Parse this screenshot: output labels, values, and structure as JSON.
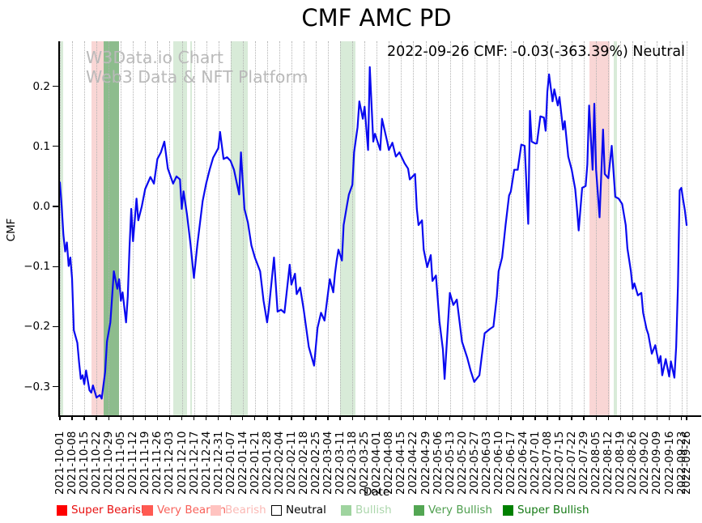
{
  "title": "CMF AMC PD",
  "annotation": "2022-09-26 CMF: -0.03(-363.39%) Neutral",
  "watermark": {
    "line1": "W3Data.io Chart",
    "line2": "Web3 Data & NFT Platform"
  },
  "axes": {
    "x_label": "Date",
    "y_label": "CMF",
    "y_ticks": [
      "0.2",
      "0.1",
      "0.0",
      "−0.1",
      "−0.2",
      "−0.3"
    ],
    "x_ticks": [
      "2021-10-01",
      "2021-10-08",
      "2021-10-15",
      "2021-10-22",
      "2021-10-29",
      "2021-11-05",
      "2021-11-12",
      "2021-11-19",
      "2021-11-26",
      "2021-12-03",
      "2021-12-10",
      "2021-12-17",
      "2021-12-24",
      "2021-12-31",
      "2022-01-07",
      "2022-01-14",
      "2022-01-21",
      "2022-01-28",
      "2022-02-04",
      "2022-02-11",
      "2022-02-18",
      "2022-02-25",
      "2022-03-04",
      "2022-03-11",
      "2022-03-18",
      "2022-03-25",
      "2022-04-01",
      "2022-04-08",
      "2022-04-15",
      "2022-04-22",
      "2022-04-29",
      "2022-05-06",
      "2022-05-13",
      "2022-05-20",
      "2022-05-27",
      "2022-06-03",
      "2022-06-10",
      "2022-06-17",
      "2022-06-24",
      "2022-07-01",
      "2022-07-08",
      "2022-07-15",
      "2022-07-22",
      "2022-07-29",
      "2022-08-05",
      "2022-08-12",
      "2022-08-19",
      "2022-08-26",
      "2022-09-02",
      "2022-09-09",
      "2022-09-16",
      "2022-09-23",
      "2022-09-26"
    ]
  },
  "colors": {
    "line": "#0a0af0",
    "bearish_band": "#f9d6d5",
    "bullish_band": "#d8ebd8",
    "very_bullish_band": "#8dbc8d",
    "gridline": "#b3b3b3",
    "watermark": "#bababa"
  },
  "legend": [
    {
      "label": "Super Bearish",
      "color": "#fe0000",
      "text_color": "#e81010",
      "edge": "#fe0000"
    },
    {
      "label": "Very Bearish",
      "color": "#ff5a52",
      "text_color": "#f8615a",
      "edge": "#ff5a52"
    },
    {
      "label": "Bearish",
      "color": "#ffc3c0",
      "text_color": "#fbb9b5",
      "edge": "#ffc3c0"
    },
    {
      "label": "Neutral",
      "color": "#ffffff",
      "text_color": "#000000",
      "edge": "#000000"
    },
    {
      "label": "Bullish",
      "color": "#9fd49f",
      "text_color": "#abd6ab",
      "edge": "#9fd49f"
    },
    {
      "label": "Very Bullish",
      "color": "#53a653",
      "text_color": "#4f9f4f",
      "edge": "#53a653"
    },
    {
      "label": "Super Bullish",
      "color": "#008000",
      "text_color": "#157a15",
      "edge": "#008000"
    }
  ],
  "chart_data": {
    "type": "line",
    "title": "CMF AMC PD",
    "xlabel": "Date",
    "ylabel": "CMF",
    "x_range": [
      "2021-10-01",
      "2022-09-26"
    ],
    "ylim": [
      -0.348,
      0.275
    ],
    "y_tick_values": [
      0.2,
      0.1,
      0.0,
      -0.1,
      -0.2,
      -0.3
    ],
    "grid": "vertical dotted weekly",
    "legend_position": "bottom",
    "latest": {
      "date": "2022-09-26",
      "value": -0.03,
      "change_pct": -363.39,
      "signal": "Neutral"
    },
    "bands": [
      {
        "start": "2021-10-01",
        "end": "2021-10-03",
        "category": "bullish"
      },
      {
        "start": "2021-10-19",
        "end": "2021-10-26",
        "category": "bearish"
      },
      {
        "start": "2021-10-26",
        "end": "2021-11-04",
        "category": "very_bullish"
      },
      {
        "start": "2021-12-05",
        "end": "2021-12-13",
        "category": "bullish"
      },
      {
        "start": "2021-12-15",
        "end": "2021-12-16",
        "category": "bullish"
      },
      {
        "start": "2022-01-07",
        "end": "2022-01-17",
        "category": "bullish"
      },
      {
        "start": "2022-03-11",
        "end": "2022-03-20",
        "category": "bullish"
      },
      {
        "start": "2022-08-01",
        "end": "2022-08-13",
        "category": "bearish"
      },
      {
        "start": "2022-08-15",
        "end": "2022-08-17",
        "category": "bullish"
      }
    ],
    "series": [
      {
        "name": "CMF",
        "color": "#0a0af0",
        "points": [
          [
            "2021-10-01",
            0.04
          ],
          [
            "2021-10-02",
            0.0
          ],
          [
            "2021-10-03",
            -0.047
          ],
          [
            "2021-10-04",
            -0.075
          ],
          [
            "2021-10-05",
            -0.06
          ],
          [
            "2021-10-06",
            -0.099
          ],
          [
            "2021-10-07",
            -0.085
          ],
          [
            "2021-10-08",
            -0.12
          ],
          [
            "2021-10-09",
            -0.206
          ],
          [
            "2021-10-11",
            -0.227
          ],
          [
            "2021-10-12",
            -0.26
          ],
          [
            "2021-10-13",
            -0.287
          ],
          [
            "2021-10-14",
            -0.281
          ],
          [
            "2021-10-15",
            -0.296
          ],
          [
            "2021-10-16",
            -0.273
          ],
          [
            "2021-10-18",
            -0.306
          ],
          [
            "2021-10-19",
            -0.31
          ],
          [
            "2021-10-20",
            -0.298
          ],
          [
            "2021-10-22",
            -0.318
          ],
          [
            "2021-10-24",
            -0.314
          ],
          [
            "2021-10-25",
            -0.32
          ],
          [
            "2021-10-27",
            -0.275
          ],
          [
            "2021-10-28",
            -0.225
          ],
          [
            "2021-10-30",
            -0.193
          ],
          [
            "2021-11-01",
            -0.108
          ],
          [
            "2021-11-03",
            -0.137
          ],
          [
            "2021-11-04",
            -0.121
          ],
          [
            "2021-11-05",
            -0.157
          ],
          [
            "2021-11-06",
            -0.143
          ],
          [
            "2021-11-08",
            -0.193
          ],
          [
            "2021-11-09",
            -0.15
          ],
          [
            "2021-11-10",
            -0.067
          ],
          [
            "2021-11-11",
            -0.004
          ],
          [
            "2021-11-12",
            -0.058
          ],
          [
            "2021-11-14",
            0.013
          ],
          [
            "2021-11-15",
            -0.023
          ],
          [
            "2021-11-17",
            0.0
          ],
          [
            "2021-11-19",
            0.029
          ],
          [
            "2021-11-22",
            0.049
          ],
          [
            "2021-11-24",
            0.038
          ],
          [
            "2021-11-26",
            0.079
          ],
          [
            "2021-11-28",
            0.09
          ],
          [
            "2021-11-30",
            0.108
          ],
          [
            "2021-12-02",
            0.063
          ],
          [
            "2021-12-05",
            0.038
          ],
          [
            "2021-12-07",
            0.05
          ],
          [
            "2021-12-09",
            0.045
          ],
          [
            "2021-12-10",
            -0.004
          ],
          [
            "2021-12-11",
            0.025
          ],
          [
            "2021-12-13",
            -0.013
          ],
          [
            "2021-12-15",
            -0.063
          ],
          [
            "2021-12-17",
            -0.119
          ],
          [
            "2021-12-19",
            -0.063
          ],
          [
            "2021-12-22",
            0.009
          ],
          [
            "2021-12-24",
            0.038
          ],
          [
            "2021-12-26",
            0.061
          ],
          [
            "2021-12-28",
            0.081
          ],
          [
            "2021-12-31",
            0.097
          ],
          [
            "2022-01-01",
            0.124
          ],
          [
            "2022-01-03",
            0.079
          ],
          [
            "2022-01-05",
            0.082
          ],
          [
            "2022-01-07",
            0.076
          ],
          [
            "2022-01-09",
            0.061
          ],
          [
            "2022-01-12",
            0.02
          ],
          [
            "2022-01-13",
            0.09
          ],
          [
            "2022-01-15",
            -0.004
          ],
          [
            "2022-01-17",
            -0.027
          ],
          [
            "2022-01-19",
            -0.065
          ],
          [
            "2022-01-21",
            -0.085
          ],
          [
            "2022-01-24",
            -0.108
          ],
          [
            "2022-01-26",
            -0.157
          ],
          [
            "2022-01-28",
            -0.193
          ],
          [
            "2022-01-29",
            -0.171
          ],
          [
            "2022-02-01",
            -0.085
          ],
          [
            "2022-02-03",
            -0.175
          ],
          [
            "2022-02-05",
            -0.172
          ],
          [
            "2022-02-07",
            -0.177
          ],
          [
            "2022-02-10",
            -0.097
          ],
          [
            "2022-02-11",
            -0.13
          ],
          [
            "2022-02-13",
            -0.112
          ],
          [
            "2022-02-14",
            -0.146
          ],
          [
            "2022-02-16",
            -0.135
          ],
          [
            "2022-02-18",
            -0.171
          ],
          [
            "2022-02-21",
            -0.234
          ],
          [
            "2022-02-24",
            -0.265
          ],
          [
            "2022-02-26",
            -0.202
          ],
          [
            "2022-02-28",
            -0.177
          ],
          [
            "2022-03-02",
            -0.19
          ],
          [
            "2022-03-05",
            -0.121
          ],
          [
            "2022-03-07",
            -0.143
          ],
          [
            "2022-03-08",
            -0.112
          ],
          [
            "2022-03-09",
            -0.09
          ],
          [
            "2022-03-10",
            -0.072
          ],
          [
            "2022-03-12",
            -0.09
          ],
          [
            "2022-03-13",
            -0.031
          ],
          [
            "2022-03-15",
            0.004
          ],
          [
            "2022-03-16",
            0.02
          ],
          [
            "2022-03-18",
            0.036
          ],
          [
            "2022-03-19",
            0.09
          ],
          [
            "2022-03-21",
            0.132
          ],
          [
            "2022-03-22",
            0.175
          ],
          [
            "2022-03-24",
            0.146
          ],
          [
            "2022-03-25",
            0.166
          ],
          [
            "2022-03-27",
            0.094
          ],
          [
            "2022-03-28",
            0.232
          ],
          [
            "2022-03-30",
            0.108
          ],
          [
            "2022-03-31",
            0.121
          ],
          [
            "2022-04-03",
            0.094
          ],
          [
            "2022-04-04",
            0.146
          ],
          [
            "2022-04-07",
            0.108
          ],
          [
            "2022-04-08",
            0.094
          ],
          [
            "2022-04-10",
            0.106
          ],
          [
            "2022-04-12",
            0.083
          ],
          [
            "2022-04-14",
            0.09
          ],
          [
            "2022-04-17",
            0.072
          ],
          [
            "2022-04-19",
            0.063
          ],
          [
            "2022-04-20",
            0.045
          ],
          [
            "2022-04-23",
            0.054
          ],
          [
            "2022-04-24",
            -0.004
          ],
          [
            "2022-04-25",
            -0.031
          ],
          [
            "2022-04-27",
            -0.023
          ],
          [
            "2022-04-28",
            -0.072
          ],
          [
            "2022-04-30",
            -0.101
          ],
          [
            "2022-05-02",
            -0.081
          ],
          [
            "2022-05-03",
            -0.124
          ],
          [
            "2022-05-05",
            -0.115
          ],
          [
            "2022-05-07",
            -0.191
          ],
          [
            "2022-05-09",
            -0.238
          ],
          [
            "2022-05-10",
            -0.287
          ],
          [
            "2022-05-13",
            -0.144
          ],
          [
            "2022-05-15",
            -0.164
          ],
          [
            "2022-05-17",
            -0.155
          ],
          [
            "2022-05-20",
            -0.225
          ],
          [
            "2022-05-23",
            -0.252
          ],
          [
            "2022-05-25",
            -0.274
          ],
          [
            "2022-05-27",
            -0.292
          ],
          [
            "2022-05-30",
            -0.281
          ],
          [
            "2022-06-01",
            -0.234
          ],
          [
            "2022-06-02",
            -0.211
          ],
          [
            "2022-06-05",
            -0.204
          ],
          [
            "2022-06-07",
            -0.2
          ],
          [
            "2022-06-09",
            -0.15
          ],
          [
            "2022-06-10",
            -0.108
          ],
          [
            "2022-06-12",
            -0.085
          ],
          [
            "2022-06-13",
            -0.058
          ],
          [
            "2022-06-14",
            -0.031
          ],
          [
            "2022-06-16",
            0.018
          ],
          [
            "2022-06-17",
            0.025
          ],
          [
            "2022-06-19",
            0.061
          ],
          [
            "2022-06-21",
            0.061
          ],
          [
            "2022-06-23",
            0.103
          ],
          [
            "2022-06-25",
            0.101
          ],
          [
            "2022-06-27",
            -0.029
          ],
          [
            "2022-06-28",
            0.159
          ],
          [
            "2022-06-29",
            0.108
          ],
          [
            "2022-07-01",
            0.105
          ],
          [
            "2022-07-02",
            0.105
          ],
          [
            "2022-07-04",
            0.15
          ],
          [
            "2022-07-06",
            0.148
          ],
          [
            "2022-07-07",
            0.126
          ],
          [
            "2022-07-08",
            0.191
          ],
          [
            "2022-07-09",
            0.22
          ],
          [
            "2022-07-11",
            0.175
          ],
          [
            "2022-07-12",
            0.195
          ],
          [
            "2022-07-14",
            0.168
          ],
          [
            "2022-07-15",
            0.182
          ],
          [
            "2022-07-17",
            0.128
          ],
          [
            "2022-07-18",
            0.142
          ],
          [
            "2022-07-20",
            0.083
          ],
          [
            "2022-07-22",
            0.061
          ],
          [
            "2022-07-24",
            0.029
          ],
          [
            "2022-07-25",
            -0.002
          ],
          [
            "2022-07-26",
            -0.04
          ],
          [
            "2022-07-28",
            0.031
          ],
          [
            "2022-07-30",
            0.034
          ],
          [
            "2022-07-31",
            0.07
          ],
          [
            "2022-08-01",
            0.168
          ],
          [
            "2022-08-03",
            0.061
          ],
          [
            "2022-08-04",
            0.171
          ],
          [
            "2022-08-05",
            0.061
          ],
          [
            "2022-08-07",
            -0.018
          ],
          [
            "2022-08-09",
            0.128
          ],
          [
            "2022-08-10",
            0.054
          ],
          [
            "2022-08-12",
            0.047
          ],
          [
            "2022-08-14",
            0.101
          ],
          [
            "2022-08-16",
            0.016
          ],
          [
            "2022-08-18",
            0.013
          ],
          [
            "2022-08-20",
            0.004
          ],
          [
            "2022-08-22",
            -0.031
          ],
          [
            "2022-08-23",
            -0.07
          ],
          [
            "2022-08-25",
            -0.108
          ],
          [
            "2022-08-26",
            -0.137
          ],
          [
            "2022-08-27",
            -0.128
          ],
          [
            "2022-08-29",
            -0.148
          ],
          [
            "2022-08-31",
            -0.144
          ],
          [
            "2022-09-01",
            -0.177
          ],
          [
            "2022-09-03",
            -0.204
          ],
          [
            "2022-09-04",
            -0.213
          ],
          [
            "2022-09-06",
            -0.245
          ],
          [
            "2022-09-08",
            -0.231
          ],
          [
            "2022-09-10",
            -0.261
          ],
          [
            "2022-09-11",
            -0.249
          ],
          [
            "2022-09-12",
            -0.281
          ],
          [
            "2022-09-14",
            -0.254
          ],
          [
            "2022-09-16",
            -0.283
          ],
          [
            "2022-09-17",
            -0.258
          ],
          [
            "2022-09-19",
            -0.285
          ],
          [
            "2022-09-20",
            -0.234
          ],
          [
            "2022-09-21",
            -0.132
          ],
          [
            "2022-09-22",
            0.027
          ],
          [
            "2022-09-23",
            0.031
          ],
          [
            "2022-09-24",
            0.011
          ],
          [
            "2022-09-25",
            -0.007
          ],
          [
            "2022-09-26",
            -0.031
          ]
        ]
      }
    ]
  }
}
